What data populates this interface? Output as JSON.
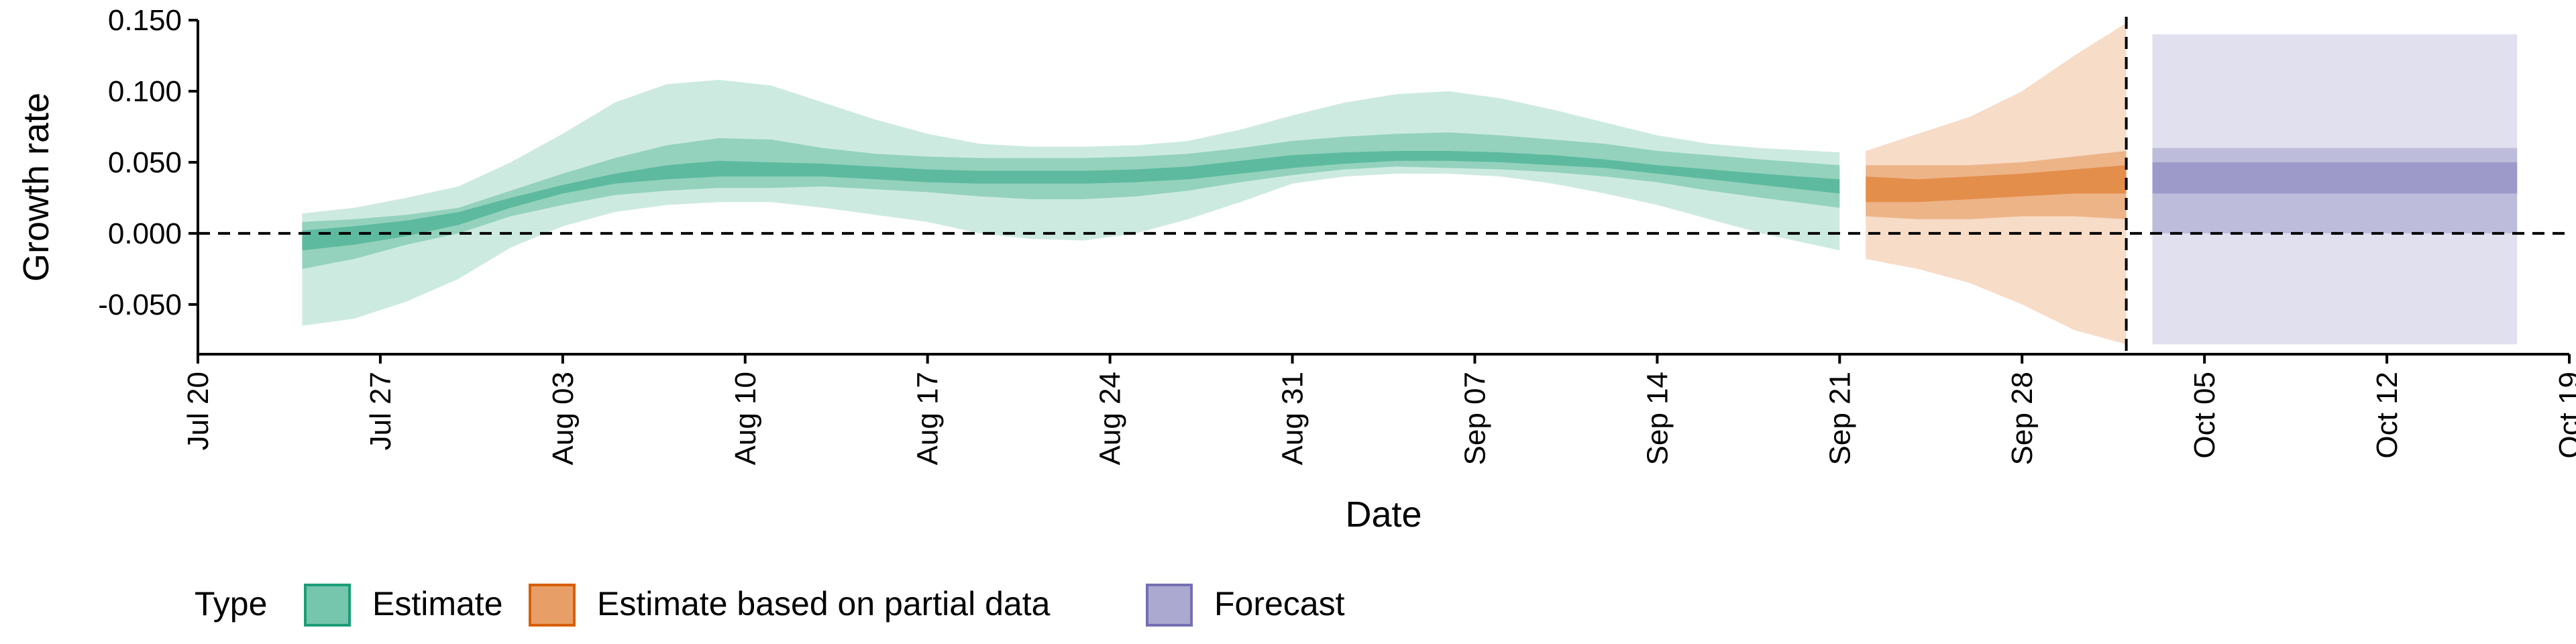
{
  "chart_data": {
    "type": "area",
    "xlabel": "Date",
    "ylabel": "Growth rate",
    "x_ticks": [
      "Jul 20",
      "Jul 27",
      "Aug 03",
      "Aug 10",
      "Aug 17",
      "Aug 24",
      "Aug 31",
      "Sep 07",
      "Sep 14",
      "Sep 21",
      "Sep 28",
      "Oct 05",
      "Oct 12",
      "Oct 19"
    ],
    "y_ticks": [
      "0.150",
      "0.100",
      "0.050",
      "0.000",
      "-0.050"
    ],
    "y_tick_values": [
      0.15,
      0.1,
      0.05,
      0.0,
      -0.05
    ],
    "xlim": [
      "2020-07-20",
      "2020-10-19"
    ],
    "ylim": [
      -0.085,
      0.15
    ],
    "reference_lines": [
      {
        "axis": "y",
        "value": 0.0,
        "style": "dashed"
      },
      {
        "axis": "x",
        "value": "2020-10-02",
        "style": "dashed"
      }
    ],
    "legend": {
      "title": "Type",
      "position": "bottom-left",
      "entries": [
        "Estimate",
        "Estimate based on partial data",
        "Forecast"
      ]
    },
    "series": [
      {
        "name": "Estimate",
        "color": "#1b9e77",
        "x": [
          "2020-07-24",
          "2020-07-26",
          "2020-07-28",
          "2020-07-30",
          "2020-08-01",
          "2020-08-03",
          "2020-08-05",
          "2020-08-07",
          "2020-08-09",
          "2020-08-11",
          "2020-08-13",
          "2020-08-15",
          "2020-08-17",
          "2020-08-19",
          "2020-08-21",
          "2020-08-23",
          "2020-08-25",
          "2020-08-27",
          "2020-08-29",
          "2020-08-31",
          "2020-09-02",
          "2020-09-04",
          "2020-09-06",
          "2020-09-08",
          "2020-09-10",
          "2020-09-12",
          "2020-09-14",
          "2020-09-16",
          "2020-09-18",
          "2020-09-21"
        ],
        "bands": [
          {
            "level": "90%",
            "lower": [
              -0.065,
              -0.06,
              -0.048,
              -0.032,
              -0.01,
              0.005,
              0.015,
              0.02,
              0.022,
              0.022,
              0.018,
              0.013,
              0.008,
              0.0,
              -0.004,
              -0.005,
              0.0,
              0.01,
              0.022,
              0.035,
              0.04,
              0.042,
              0.042,
              0.04,
              0.035,
              0.028,
              0.02,
              0.01,
              0.0,
              -0.012
            ],
            "upper": [
              0.014,
              0.018,
              0.025,
              0.033,
              0.05,
              0.07,
              0.092,
              0.105,
              0.108,
              0.104,
              0.092,
              0.08,
              0.07,
              0.063,
              0.061,
              0.061,
              0.062,
              0.065,
              0.073,
              0.083,
              0.092,
              0.098,
              0.1,
              0.095,
              0.087,
              0.078,
              0.069,
              0.063,
              0.06,
              0.057
            ]
          },
          {
            "level": "50%",
            "lower": [
              -0.025,
              -0.018,
              -0.008,
              0.0,
              0.012,
              0.02,
              0.027,
              0.03,
              0.032,
              0.032,
              0.033,
              0.031,
              0.029,
              0.026,
              0.024,
              0.024,
              0.026,
              0.03,
              0.036,
              0.041,
              0.045,
              0.047,
              0.046,
              0.045,
              0.043,
              0.04,
              0.036,
              0.03,
              0.025,
              0.018
            ],
            "upper": [
              0.008,
              0.01,
              0.013,
              0.018,
              0.03,
              0.042,
              0.053,
              0.062,
              0.067,
              0.066,
              0.06,
              0.056,
              0.054,
              0.053,
              0.053,
              0.053,
              0.054,
              0.056,
              0.06,
              0.065,
              0.068,
              0.07,
              0.071,
              0.069,
              0.066,
              0.063,
              0.058,
              0.055,
              0.052,
              0.048
            ]
          },
          {
            "level": "20%",
            "lower": [
              -0.012,
              -0.008,
              -0.002,
              0.006,
              0.018,
              0.028,
              0.035,
              0.038,
              0.04,
              0.04,
              0.04,
              0.038,
              0.036,
              0.035,
              0.035,
              0.035,
              0.036,
              0.038,
              0.042,
              0.046,
              0.049,
              0.051,
              0.051,
              0.05,
              0.048,
              0.046,
              0.042,
              0.038,
              0.034,
              0.028
            ],
            "upper": [
              0.002,
              0.005,
              0.009,
              0.015,
              0.025,
              0.034,
              0.042,
              0.048,
              0.051,
              0.05,
              0.049,
              0.047,
              0.045,
              0.044,
              0.044,
              0.044,
              0.045,
              0.047,
              0.051,
              0.055,
              0.057,
              0.058,
              0.058,
              0.057,
              0.055,
              0.052,
              0.048,
              0.045,
              0.042,
              0.038
            ]
          }
        ]
      },
      {
        "name": "Estimate based on partial data",
        "color": "#d95f02",
        "x": [
          "2020-09-22",
          "2020-09-24",
          "2020-09-26",
          "2020-09-28",
          "2020-09-30",
          "2020-10-02"
        ],
        "bands": [
          {
            "level": "90%",
            "lower": [
              -0.018,
              -0.025,
              -0.035,
              -0.05,
              -0.068,
              -0.078
            ],
            "upper": [
              0.058,
              0.07,
              0.082,
              0.1,
              0.125,
              0.148
            ]
          },
          {
            "level": "50%",
            "lower": [
              0.012,
              0.01,
              0.01,
              0.012,
              0.012,
              0.01
            ],
            "upper": [
              0.048,
              0.048,
              0.048,
              0.05,
              0.054,
              0.058
            ]
          },
          {
            "level": "20%",
            "lower": [
              0.022,
              0.022,
              0.024,
              0.026,
              0.028,
              0.028
            ],
            "upper": [
              0.04,
              0.038,
              0.04,
              0.042,
              0.045,
              0.048
            ]
          }
        ]
      },
      {
        "name": "Forecast",
        "color": "#7570b3",
        "x": [
          "2020-10-03",
          "2020-10-17"
        ],
        "bands": [
          {
            "level": "90%",
            "lower": [
              -0.078,
              -0.078
            ],
            "upper": [
              0.14,
              0.14
            ]
          },
          {
            "level": "50%",
            "lower": [
              0.0,
              0.0
            ],
            "upper": [
              0.06,
              0.06
            ]
          },
          {
            "level": "20%",
            "lower": [
              0.028,
              0.028
            ],
            "upper": [
              0.05,
              0.05
            ]
          }
        ]
      }
    ]
  }
}
